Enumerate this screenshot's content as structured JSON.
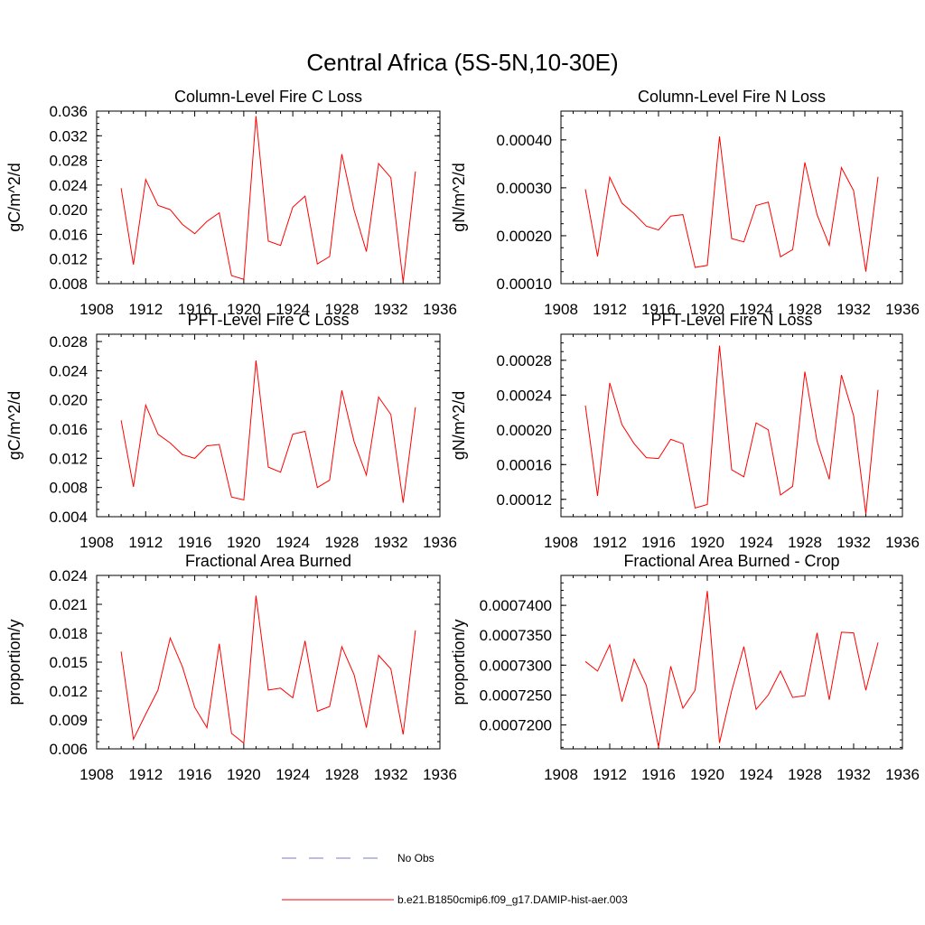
{
  "title": "Central Africa (5S-5N,10-30E)",
  "legend": [
    {
      "label": "No Obs",
      "color": "#7b7bc8",
      "dash": true
    },
    {
      "label": "b.e21.B1850cmip6.f09_g17.DAMIP-hist-aer.003",
      "color": "#ff0000",
      "dash": false
    }
  ],
  "chart_data": [
    {
      "type": "line",
      "title": "Column-Level Fire C Loss",
      "ylabel": "gC/m^2/d",
      "xlim": [
        1908,
        1936
      ],
      "ylim": [
        0.008,
        0.036
      ],
      "xticks": [
        "1908",
        "1912",
        "1916",
        "1920",
        "1924",
        "1928",
        "1932",
        "1936"
      ],
      "yticks": [
        "0.008",
        "0.012",
        "0.016",
        "0.020",
        "0.024",
        "0.028",
        "0.032",
        "0.036"
      ],
      "ytickvals": [
        0.008,
        0.012,
        0.016,
        0.02,
        0.024,
        0.028,
        0.032,
        0.036
      ],
      "color": "#ff0000",
      "x": [
        1910,
        1911,
        1912,
        1913,
        1914,
        1915,
        1916,
        1917,
        1918,
        1919,
        1920,
        1921,
        1922,
        1923,
        1924,
        1925,
        1926,
        1927,
        1928,
        1929,
        1930,
        1931,
        1932,
        1933,
        1934
      ],
      "y": [
        0.0235,
        0.0111,
        0.0249,
        0.0207,
        0.02,
        0.0176,
        0.0161,
        0.0181,
        0.0195,
        0.0093,
        0.0087,
        0.0352,
        0.0149,
        0.0142,
        0.0204,
        0.0222,
        0.0112,
        0.0124,
        0.029,
        0.0199,
        0.0132,
        0.0275,
        0.0252,
        0.0082,
        0.0262
      ]
    },
    {
      "type": "line",
      "title": "Column-Level Fire N Loss",
      "ylabel": "gN/m^2/d",
      "xlim": [
        1908,
        1936
      ],
      "ylim": [
        0.0001,
        0.00046
      ],
      "xticks": [
        "1908",
        "1912",
        "1916",
        "1920",
        "1924",
        "1928",
        "1932",
        "1936"
      ],
      "yticks": [
        "0.00010",
        "0.00020",
        "0.00030",
        "0.00040"
      ],
      "ytickvals": [
        0.0001,
        0.0002,
        0.0003,
        0.0004
      ],
      "color": "#ff0000",
      "x": [
        1910,
        1911,
        1912,
        1913,
        1914,
        1915,
        1916,
        1917,
        1918,
        1919,
        1920,
        1921,
        1922,
        1923,
        1924,
        1925,
        1926,
        1927,
        1928,
        1929,
        1930,
        1931,
        1932,
        1933,
        1934
      ],
      "y": [
        0.000297,
        0.000157,
        0.000322,
        0.000268,
        0.000246,
        0.00022,
        0.000212,
        0.000241,
        0.000244,
        0.000134,
        0.000138,
        0.000407,
        0.000194,
        0.000187,
        0.000263,
        0.00027,
        0.000156,
        0.000171,
        0.000353,
        0.000244,
        0.00018,
        0.000342,
        0.000294,
        0.000125,
        0.000323
      ]
    },
    {
      "type": "line",
      "title": "PFT-Level Fire C Loss",
      "ylabel": "gC/m^2/d",
      "xlim": [
        1908,
        1936
      ],
      "ylim": [
        0.004,
        0.029
      ],
      "xticks": [
        "1908",
        "1912",
        "1916",
        "1920",
        "1924",
        "1928",
        "1932",
        "1936"
      ],
      "yticks": [
        "0.004",
        "0.008",
        "0.012",
        "0.016",
        "0.020",
        "0.024",
        "0.028"
      ],
      "ytickvals": [
        0.004,
        0.008,
        0.012,
        0.016,
        0.02,
        0.024,
        0.028
      ],
      "color": "#ff0000",
      "x": [
        1910,
        1911,
        1912,
        1913,
        1914,
        1915,
        1916,
        1917,
        1918,
        1919,
        1920,
        1921,
        1922,
        1923,
        1924,
        1925,
        1926,
        1927,
        1928,
        1929,
        1930,
        1931,
        1932,
        1933,
        1934
      ],
      "y": [
        0.0172,
        0.0081,
        0.0193,
        0.0153,
        0.0141,
        0.0125,
        0.012,
        0.0137,
        0.0139,
        0.0067,
        0.0063,
        0.0254,
        0.0108,
        0.0101,
        0.0153,
        0.0157,
        0.008,
        0.009,
        0.0213,
        0.0143,
        0.0097,
        0.0204,
        0.018,
        0.0059,
        0.019
      ]
    },
    {
      "type": "line",
      "title": "PFT-Level Fire N Loss",
      "ylabel": "gN/m^2/d",
      "xlim": [
        1908,
        1936
      ],
      "ylim": [
        0.0001,
        0.00031
      ],
      "xticks": [
        "1908",
        "1912",
        "1916",
        "1920",
        "1924",
        "1928",
        "1932",
        "1936"
      ],
      "yticks": [
        "0.00012",
        "0.00016",
        "0.00020",
        "0.00024",
        "0.00028"
      ],
      "ytickvals": [
        0.00012,
        0.00016,
        0.0002,
        0.00024,
        0.00028
      ],
      "color": "#ff0000",
      "x": [
        1910,
        1911,
        1912,
        1913,
        1914,
        1915,
        1916,
        1917,
        1918,
        1919,
        1920,
        1921,
        1922,
        1923,
        1924,
        1925,
        1926,
        1927,
        1928,
        1929,
        1930,
        1931,
        1932,
        1933,
        1934
      ],
      "y": [
        0.000228,
        0.000124,
        0.000254,
        0.000206,
        0.000184,
        0.000168,
        0.000167,
        0.000189,
        0.000184,
        0.00011,
        0.000114,
        0.000297,
        0.000154,
        0.000146,
        0.000208,
        0.0002,
        0.000125,
        0.000135,
        0.000267,
        0.000187,
        0.000143,
        0.000263,
        0.000216,
        0.000103,
        0.000246
      ]
    },
    {
      "type": "line",
      "title": "Fractional Area Burned",
      "ylabel": "proportion/y",
      "xlim": [
        1908,
        1936
      ],
      "ylim": [
        0.006,
        0.024
      ],
      "xticks": [
        "1908",
        "1912",
        "1916",
        "1920",
        "1924",
        "1928",
        "1932",
        "1936"
      ],
      "yticks": [
        "0.006",
        "0.009",
        "0.012",
        "0.015",
        "0.018",
        "0.021",
        "0.024"
      ],
      "ytickvals": [
        0.006,
        0.009,
        0.012,
        0.015,
        0.018,
        0.021,
        0.024
      ],
      "color": "#ff0000",
      "x": [
        1910,
        1911,
        1912,
        1913,
        1914,
        1915,
        1916,
        1917,
        1918,
        1919,
        1920,
        1921,
        1922,
        1923,
        1924,
        1925,
        1926,
        1927,
        1928,
        1929,
        1930,
        1931,
        1932,
        1933,
        1934
      ],
      "y": [
        0.0161,
        0.007,
        0.0096,
        0.0121,
        0.0175,
        0.0145,
        0.0103,
        0.0082,
        0.0169,
        0.0076,
        0.0066,
        0.0219,
        0.0121,
        0.0123,
        0.0113,
        0.0172,
        0.0099,
        0.0104,
        0.0166,
        0.0137,
        0.0082,
        0.0157,
        0.0143,
        0.0075,
        0.0183
      ]
    },
    {
      "type": "line",
      "title": "Fractional Area Burned - Crop",
      "ylabel": "proportion/y",
      "xlim": [
        1908,
        1936
      ],
      "ylim": [
        0.000716,
        0.000745
      ],
      "xticks": [
        "1908",
        "1912",
        "1916",
        "1920",
        "1924",
        "1928",
        "1932",
        "1936"
      ],
      "yticks": [
        "0.0007200",
        "0.0007250",
        "0.0007300",
        "0.0007350",
        "0.0007400"
      ],
      "ytickvals": [
        0.00072,
        0.000725,
        0.00073,
        0.000735,
        0.00074
      ],
      "color": "#ff0000",
      "x": [
        1910,
        1911,
        1912,
        1913,
        1914,
        1915,
        1916,
        1917,
        1918,
        1919,
        1920,
        1921,
        1922,
        1923,
        1924,
        1925,
        1926,
        1927,
        1928,
        1929,
        1930,
        1931,
        1932,
        1933,
        1934
      ],
      "y": [
        0.0007306,
        0.000729,
        0.0007334,
        0.0007239,
        0.000731,
        0.0007266,
        0.0007163,
        0.0007298,
        0.0007228,
        0.0007258,
        0.0007424,
        0.000717,
        0.0007257,
        0.0007331,
        0.0007226,
        0.000725,
        0.000729,
        0.0007246,
        0.0007249,
        0.0007354,
        0.0007242,
        0.0007355,
        0.0007354,
        0.0007258,
        0.0007338
      ]
    }
  ]
}
